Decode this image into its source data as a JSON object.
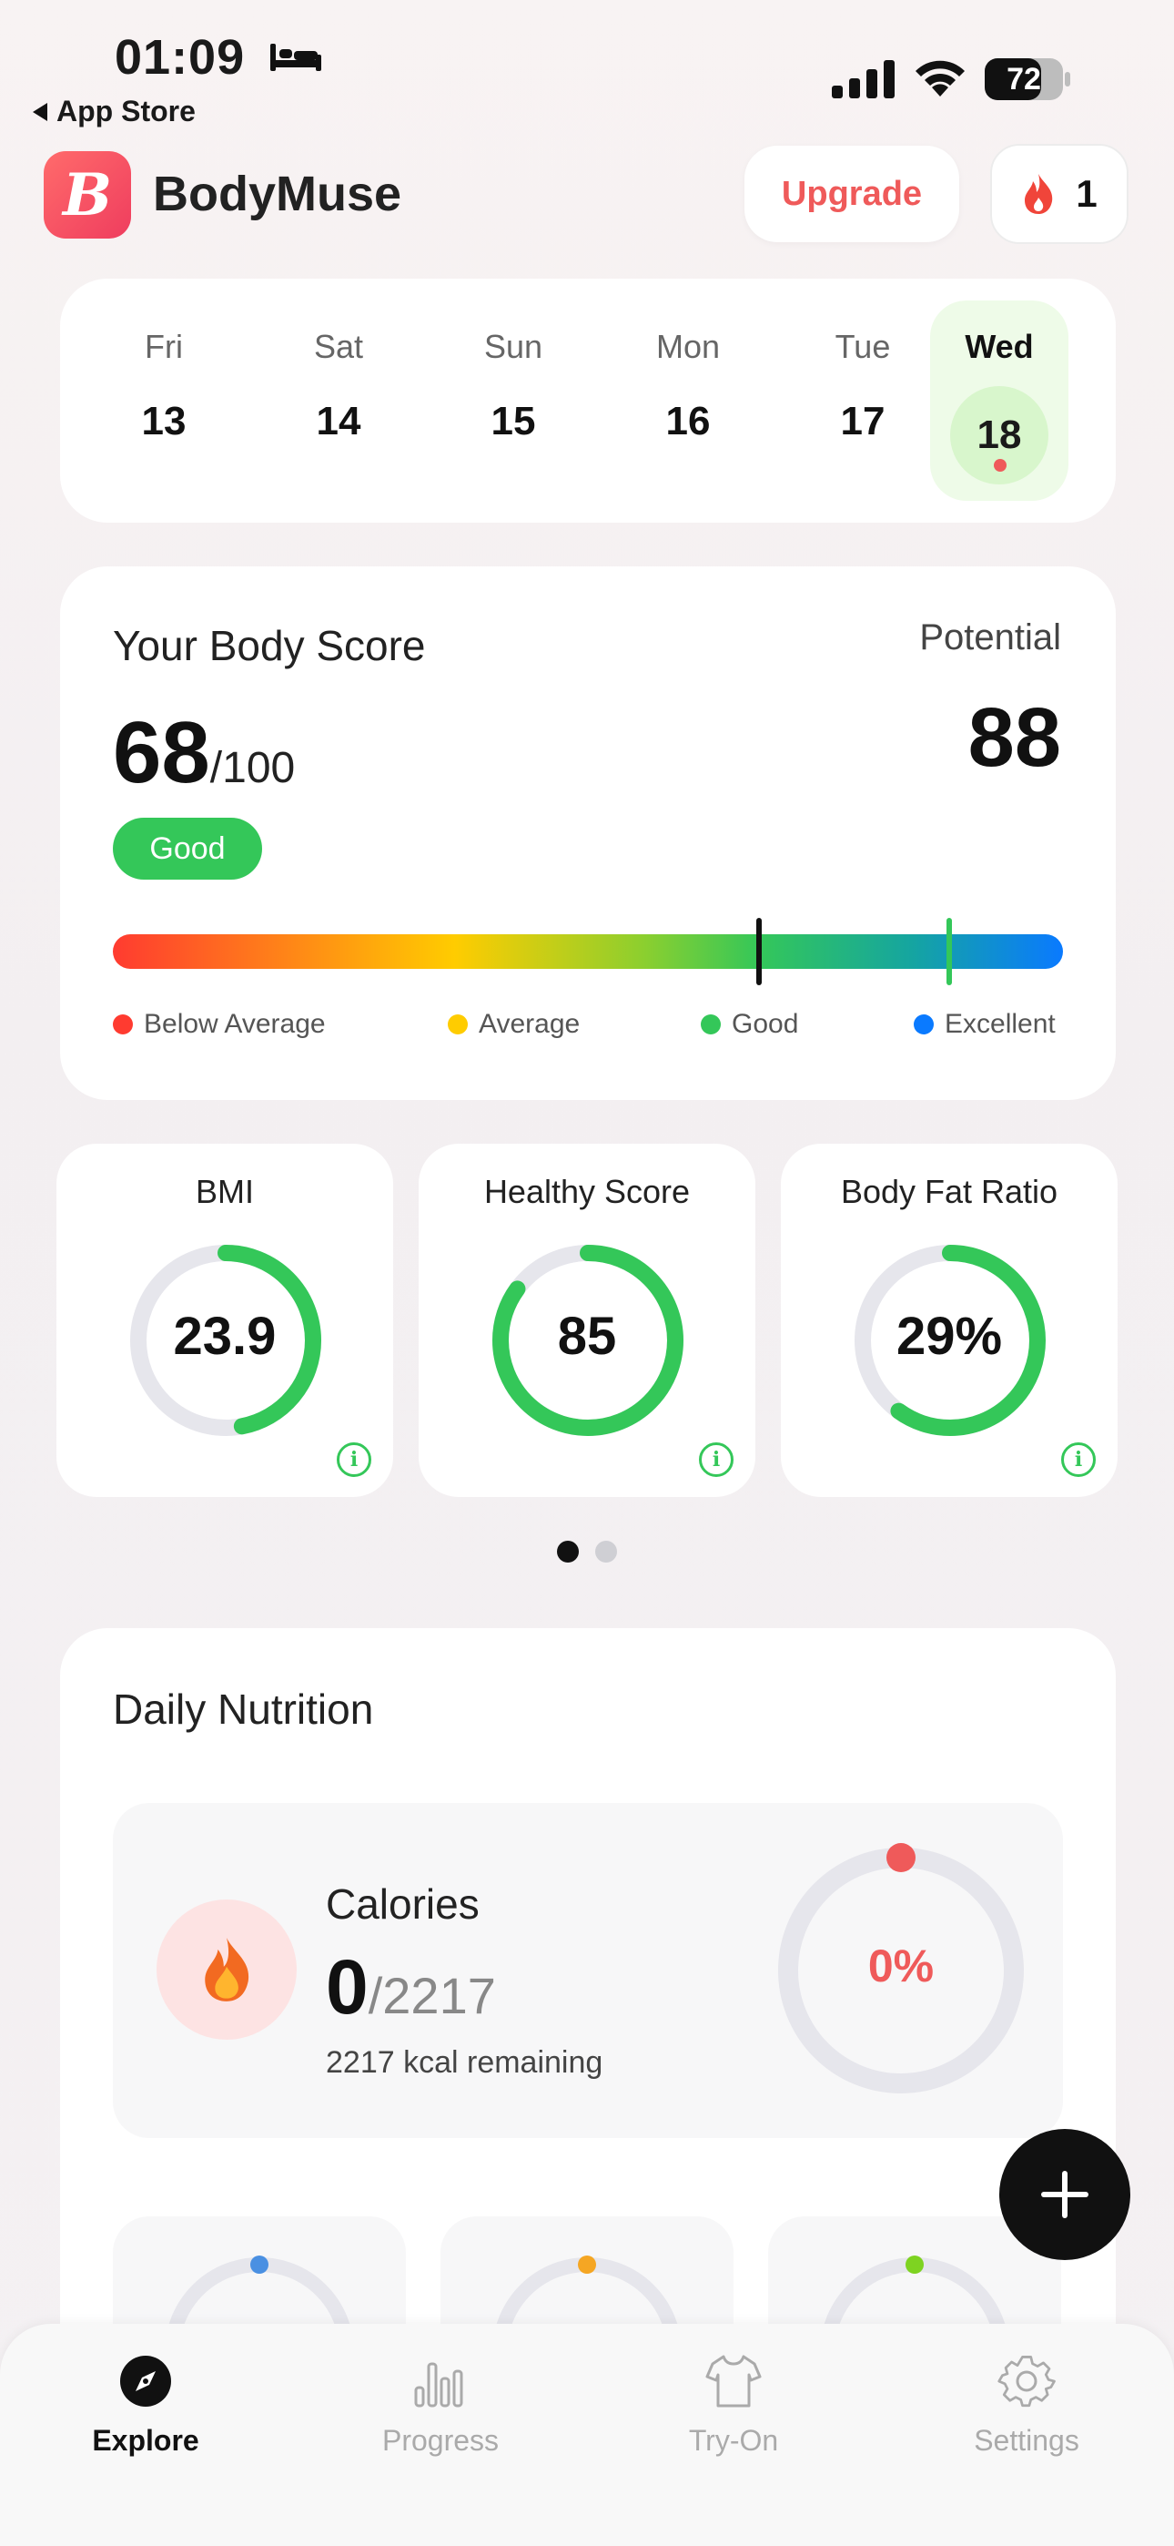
{
  "status_bar": {
    "time": "01:09",
    "back_app": "App Store",
    "battery": "72"
  },
  "header": {
    "app_name": "BodyMuse",
    "logo_letter": "B",
    "upgrade_label": "Upgrade",
    "streak_count": "1"
  },
  "calendar": {
    "days": [
      {
        "name": "Fri",
        "num": "13"
      },
      {
        "name": "Sat",
        "num": "14"
      },
      {
        "name": "Sun",
        "num": "15"
      },
      {
        "name": "Mon",
        "num": "16"
      },
      {
        "name": "Tue",
        "num": "17"
      },
      {
        "name": "Wed",
        "num": "18"
      }
    ],
    "selected_index": 5
  },
  "body_score": {
    "title": "Your Body Score",
    "score": "68",
    "max": "/100",
    "status": "Good",
    "potential_label": "Potential",
    "potential": "88",
    "score_fraction": 0.68,
    "potential_fraction": 0.88,
    "legend": [
      {
        "label": "Below Average",
        "color": "#ff3b30"
      },
      {
        "label": "Average",
        "color": "#ffcc00"
      },
      {
        "label": "Good",
        "color": "#34c759"
      },
      {
        "label": "Excellent",
        "color": "#0a7aff"
      }
    ]
  },
  "metrics": [
    {
      "title": "BMI",
      "value": "23.9",
      "fraction": 0.47
    },
    {
      "title": "Healthy Score",
      "value": "85",
      "fraction": 0.85
    },
    {
      "title": "Body Fat Ratio",
      "value": "29%",
      "fraction": 0.6
    }
  ],
  "pager": {
    "count": 2,
    "active": 0
  },
  "nutrition": {
    "title": "Daily Nutrition",
    "calories_label": "Calories",
    "calories_value": "0",
    "calories_goal": "/2217",
    "remaining": "2217 kcal remaining",
    "percent": "0%",
    "macro_colors": [
      "#4a90e2",
      "#f5a623",
      "#7ed321"
    ]
  },
  "colors": {
    "accent": "#ef5a5a",
    "good": "#34c759",
    "ring_track": "#e6e6ec"
  },
  "tabs": [
    {
      "label": "Explore",
      "icon": "compass-icon",
      "active": true
    },
    {
      "label": "Progress",
      "icon": "bar-chart-icon",
      "active": false
    },
    {
      "label": "Try-On",
      "icon": "tshirt-icon",
      "active": false
    },
    {
      "label": "Settings",
      "icon": "gear-icon",
      "active": false
    }
  ]
}
